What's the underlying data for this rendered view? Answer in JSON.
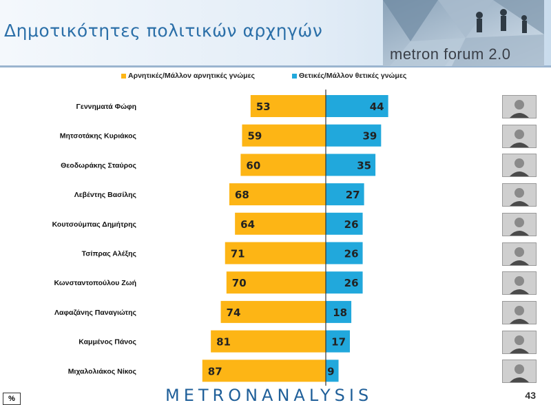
{
  "header": {
    "title": "Δημοτικότητες πολιτικών αρχηγών",
    "brand": "metron forum 2.0"
  },
  "legend": {
    "negative": "Αρνητικές/Μάλλον αρνητικές γνώμες",
    "positive": "Θετικές/Μάλλον θετικές γνώμες"
  },
  "colors": {
    "negative": "#FDB515",
    "positive": "#21A8DC"
  },
  "chart_data": {
    "type": "bar",
    "orientation": "horizontal-diverging",
    "categories": [
      "Γεννηματά Φώφη",
      "Μητσοτάκης Κυριάκος",
      "Θεοδωράκης Σταύρος",
      "Λεβέντης Βασίλης",
      "Κουτσούμπας Δημήτρης",
      "Τσίπρας Αλέξης",
      "Κωνσταντοπούλου Ζωή",
      "Λαφαζάνης Παναγιώτης",
      "Καμμένος Πάνος",
      "Μιχαλολιάκος Νίκος"
    ],
    "series": [
      {
        "name": "Αρνητικές/Μάλλον αρνητικές γνώμες",
        "values": [
          53,
          59,
          60,
          68,
          64,
          71,
          70,
          74,
          81,
          87
        ]
      },
      {
        "name": "Θετικές/Μάλλον θετικές γνώμες",
        "values": [
          44,
          39,
          35,
          27,
          26,
          26,
          26,
          18,
          17,
          9
        ]
      }
    ],
    "xlim": [
      -100,
      100
    ],
    "legend_position": "top"
  },
  "footer": {
    "unit": "%",
    "brand": "METRONANALYSIS",
    "page": "43"
  }
}
